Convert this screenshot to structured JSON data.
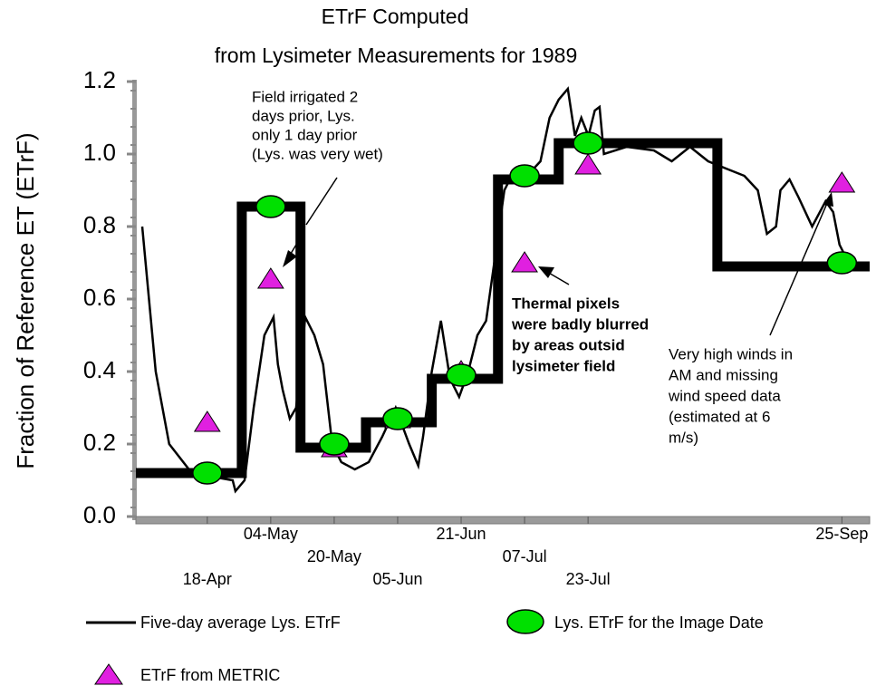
{
  "chart_data": {
    "type": "line",
    "title": "ETrF Computed",
    "subtitle": "from Lysimeter Measurements for 1989",
    "y_label": "Fraction of Reference ET (ETrF)",
    "xlim": [
      90,
      275
    ],
    "xticks": [
      {
        "value": 108,
        "label": "18-Apr"
      },
      {
        "value": 124,
        "label": "04-May"
      },
      {
        "value": 140,
        "label": "20-May"
      },
      {
        "value": 156,
        "label": "05-Jun"
      },
      {
        "value": 172,
        "label": "21-Jun"
      },
      {
        "value": 188,
        "label": "07-Jul"
      },
      {
        "value": 204,
        "label": "23-Jul"
      },
      {
        "value": 268,
        "label": "25-Sep"
      }
    ],
    "ylim": [
      0,
      1.2
    ],
    "yticks": [
      {
        "value": 0,
        "label": "0.0"
      },
      {
        "value": 0.2,
        "label": "0.2"
      },
      {
        "value": 0.4,
        "label": "0.4"
      },
      {
        "value": 0.6,
        "label": "0.6"
      },
      {
        "value": 0.8,
        "label": "0.8"
      },
      {
        "value": 1,
        "label": "1.0"
      },
      {
        "value": 1.2,
        "label": "1.2"
      }
    ],
    "series": [
      {
        "name": "Five-day average Lys. ETrF",
        "color": "#000000",
        "marker": "line",
        "linewidth": 2.5,
        "x": [
          91.6,
          95,
          98.4,
          104.1,
          114.4,
          115.1,
          117.4,
          119.7,
          122.4,
          124.7,
          125.8,
          127,
          128.8,
          130.4,
          132.7,
          135,
          137.2,
          139.5,
          141.8,
          145.2,
          148.7,
          152.1,
          155.5,
          158.9,
          161.2,
          162.4,
          164.6,
          166.9,
          169.2,
          171.5,
          173.8,
          176.1,
          178.3,
          180.6,
          182.9,
          185.2,
          188.6,
          192,
          194.3,
          196.6,
          198.9,
          200.7,
          202.3,
          204.1,
          205.7,
          206.9,
          208,
          213.7,
          220.6,
          225.1,
          229.7,
          234.3,
          238.8,
          243.4,
          246.8,
          249.1,
          251.4,
          252.5,
          254.8,
          257.1,
          260.5,
          263.9,
          265.8,
          267.4,
          269.7
        ],
        "values": [
          0.8,
          0.4,
          0.2,
          0.12,
          0.1,
          0.07,
          0.1,
          0.3,
          0.5,
          0.55,
          0.42,
          0.35,
          0.27,
          0.3,
          0.55,
          0.5,
          0.42,
          0.2,
          0.15,
          0.13,
          0.15,
          0.22,
          0.3,
          0.2,
          0.14,
          0.22,
          0.4,
          0.54,
          0.38,
          0.33,
          0.4,
          0.5,
          0.54,
          0.72,
          0.9,
          0.95,
          0.94,
          0.98,
          1.1,
          1.15,
          1.18,
          1.05,
          1.1,
          1.05,
          1.12,
          1.13,
          1,
          1.02,
          1.01,
          0.98,
          1.02,
          0.98,
          0.96,
          0.94,
          0.9,
          0.78,
          0.8,
          0.9,
          0.93,
          0.88,
          0.8,
          0.87,
          0.84,
          0.75,
          0.7
        ]
      },
      {
        "color": "#000000",
        "marker": "line",
        "linewidth": 11,
        "x": [
          90,
          116.7,
          116.7,
          131.5,
          131.5,
          148,
          148,
          164.6,
          164.6,
          181.3,
          181.3,
          196.6,
          196.6,
          236.6,
          236.6,
          275
        ],
        "values": [
          0.12,
          0.12,
          0.855,
          0.855,
          0.19,
          0.19,
          0.26,
          0.26,
          0.38,
          0.38,
          0.93,
          0.93,
          1.03,
          1.03,
          0.69,
          0.69
        ]
      },
      {
        "name": "Lys. ETrF for the Image Date",
        "color": "#00e000",
        "marker": "circle",
        "x": [
          108,
          124,
          140,
          156,
          172,
          188,
          204,
          268
        ],
        "values": [
          0.12,
          0.855,
          0.2,
          0.27,
          0.39,
          0.94,
          1.03,
          0.7
        ]
      },
      {
        "name": "ETrF from METRIC",
        "color": "#e020e0",
        "marker": "triangle",
        "x": [
          108,
          124,
          140,
          156,
          172,
          188,
          204,
          268
        ],
        "values": [
          0.26,
          0.655,
          0.19,
          0.27,
          0.4,
          0.7,
          0.97,
          0.92
        ]
      }
    ],
    "annotations": [
      {
        "lines": [
          "Field irrigated 2",
          "days prior, Lys.",
          "only 1 day prior",
          "(Lys. was very wet)"
        ]
      },
      {
        "lines": [
          "Thermal pixels",
          "were badly blurred",
          "by areas outsid",
          "lysimeter field"
        ]
      },
      {
        "lines": [
          "Very high winds in",
          "AM and missing",
          "wind speed data",
          "(estimated at 6",
          "m/s)"
        ]
      }
    ]
  }
}
